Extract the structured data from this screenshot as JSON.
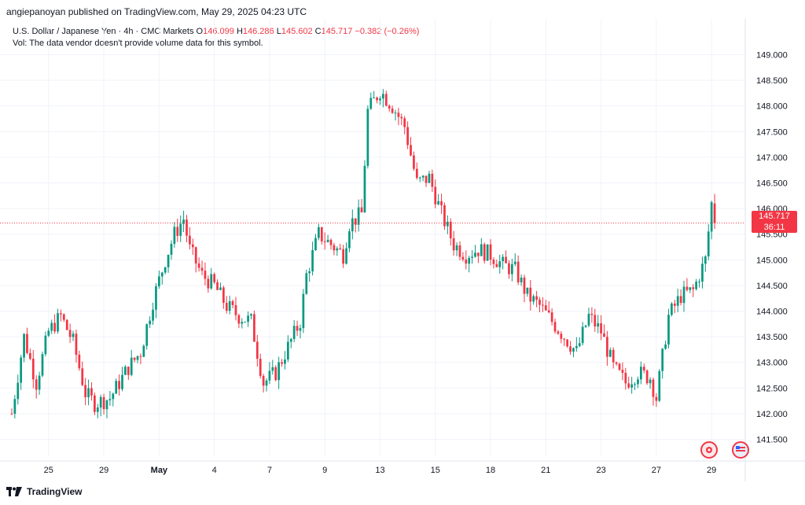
{
  "header": {
    "publish_line": "angiepanoyan published on TradingView.com, May 29, 2025 04:23 UTC"
  },
  "legend": {
    "symbol": "U.S. Dollar / Japanese Yen · 4h · CMC Markets",
    "o_label": "O",
    "o_value": "146.099",
    "h_label": "H",
    "h_value": "146.286",
    "l_label": "L",
    "l_value": "145.602",
    "c_label": "C",
    "c_value": "145.717",
    "change": "−0.382 (−0.26%)",
    "vol_note": "Vol: The data vendor doesn't provide volume data for this symbol."
  },
  "price_tag": {
    "price": "145.717",
    "countdown": "36:11"
  },
  "footer": {
    "brand": "TradingView"
  },
  "colors": {
    "up": "#089981",
    "down": "#f23645",
    "grid": "#f0f3fa"
  },
  "chart_data": {
    "type": "candlestick",
    "y_ticks": [
      "141.500",
      "142.000",
      "142.500",
      "143.000",
      "143.500",
      "144.000",
      "144.500",
      "145.000",
      "145.500",
      "146.000",
      "146.500",
      "147.000",
      "147.500",
      "148.000",
      "148.500",
      "149.000"
    ],
    "ylim": [
      141.2,
      149.3
    ],
    "x_ticks": [
      {
        "label": "25",
        "index": 12,
        "bold": false
      },
      {
        "label": "29",
        "index": 30,
        "bold": false
      },
      {
        "label": "May",
        "index": 48,
        "bold": true
      },
      {
        "label": "4",
        "index": 66,
        "bold": false
      },
      {
        "label": "7",
        "index": 84,
        "bold": false
      },
      {
        "label": "9",
        "index": 102,
        "bold": false
      },
      {
        "label": "13",
        "index": 120,
        "bold": false
      },
      {
        "label": "15",
        "index": 138,
        "bold": false
      },
      {
        "label": "18",
        "index": 156,
        "bold": false
      },
      {
        "label": "21",
        "index": 174,
        "bold": false
      },
      {
        "label": "23",
        "index": 192,
        "bold": false
      },
      {
        "label": "27",
        "index": 210,
        "bold": false
      },
      {
        "label": "29",
        "index": 228,
        "bold": false
      }
    ],
    "last_price": 145.717,
    "candles": []
  }
}
